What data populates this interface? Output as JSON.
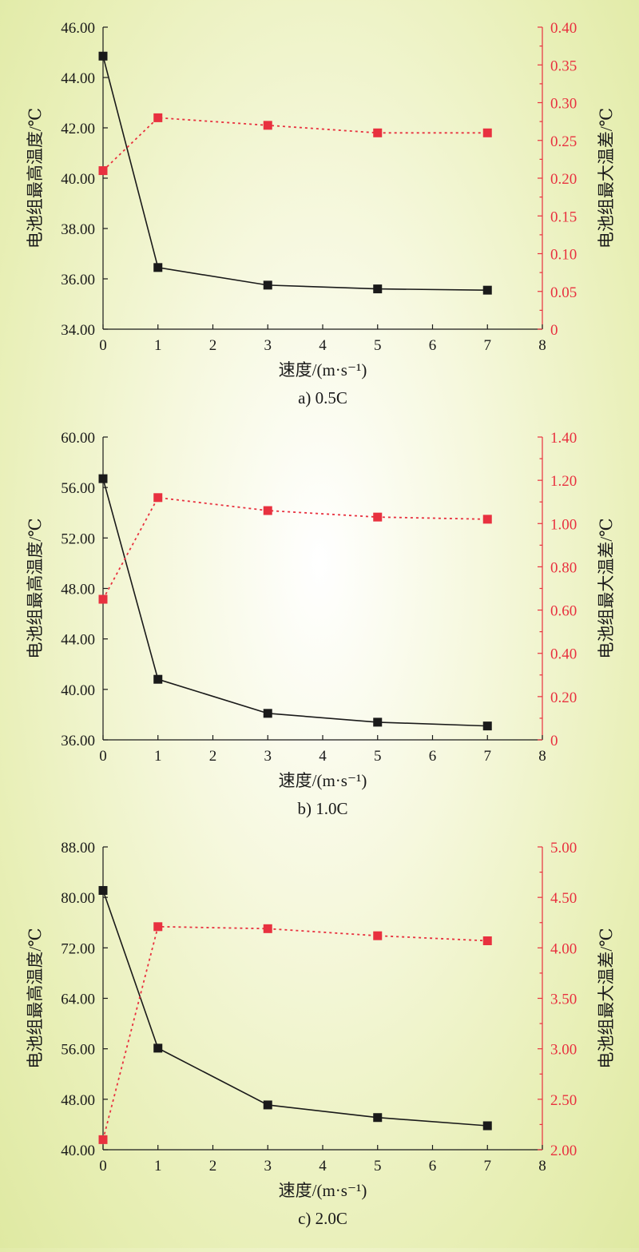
{
  "colors": {
    "left_series": "#1a1a1a",
    "right_series": "#e8313f",
    "left_axis": "#1a1a1a",
    "right_axis": "#e8313f"
  },
  "chart_data": [
    {
      "type": "line",
      "caption": "a) 0.5C",
      "xlabel": "速度/(m·s⁻¹)",
      "ylabel_left": "电池组最高温度/℃",
      "ylabel_right": "电池组最大温差/℃",
      "xlim": [
        0,
        8
      ],
      "xticks": [
        0,
        1,
        2,
        3,
        4,
        5,
        6,
        7,
        8
      ],
      "ylim_left": [
        34,
        46
      ],
      "yticks_left": [
        "34.00",
        "36.00",
        "38.00",
        "40.00",
        "42.00",
        "44.00",
        "46.00"
      ],
      "ylim_right": [
        0,
        0.4
      ],
      "yticks_right": [
        "0",
        "0.05",
        "0.10",
        "0.15",
        "0.20",
        "0.25",
        "0.30",
        "0.35",
        "0.40"
      ],
      "x": [
        0,
        1,
        3,
        5,
        7
      ],
      "series": [
        {
          "axis": "left",
          "style": "solid",
          "values": [
            44.85,
            36.45,
            35.75,
            35.6,
            35.55
          ]
        },
        {
          "axis": "right",
          "style": "dotted",
          "values": [
            0.21,
            0.28,
            0.27,
            0.26,
            0.26
          ]
        }
      ]
    },
    {
      "type": "line",
      "caption": "b) 1.0C",
      "xlabel": "速度/(m·s⁻¹)",
      "ylabel_left": "电池组最高温度/℃",
      "ylabel_right": "电池组最大温差/℃",
      "xlim": [
        0,
        8
      ],
      "xticks": [
        0,
        1,
        2,
        3,
        4,
        5,
        6,
        7,
        8
      ],
      "ylim_left": [
        36,
        60
      ],
      "yticks_left": [
        "36.00",
        "40.00",
        "44.00",
        "48.00",
        "52.00",
        "56.00",
        "60.00"
      ],
      "ylim_right": [
        0,
        1.4
      ],
      "yticks_right": [
        "0",
        "0.20",
        "0.40",
        "0.60",
        "0.80",
        "1.00",
        "1.20",
        "1.40"
      ],
      "x": [
        0,
        1,
        3,
        5,
        7
      ],
      "series": [
        {
          "axis": "left",
          "style": "solid",
          "values": [
            56.7,
            40.8,
            38.1,
            37.4,
            37.1
          ]
        },
        {
          "axis": "right",
          "style": "dotted",
          "values": [
            0.65,
            1.12,
            1.06,
            1.03,
            1.02
          ]
        }
      ]
    },
    {
      "type": "line",
      "caption": "c) 2.0C",
      "xlabel": "速度/(m·s⁻¹)",
      "ylabel_left": "电池组最高温度/℃",
      "ylabel_right": "电池组最大温差/℃",
      "xlim": [
        0,
        8
      ],
      "xticks": [
        0,
        1,
        2,
        3,
        4,
        5,
        6,
        7,
        8
      ],
      "ylim_left": [
        40,
        88
      ],
      "yticks_left": [
        "40.00",
        "48.00",
        "56.00",
        "64.00",
        "72.00",
        "80.00",
        "88.00"
      ],
      "ylim_right": [
        2,
        5
      ],
      "yticks_right": [
        "2.00",
        "2.50",
        "3.00",
        "3.50",
        "4.00",
        "4.50",
        "5.00"
      ],
      "x": [
        0,
        1,
        3,
        5,
        7
      ],
      "series": [
        {
          "axis": "left",
          "style": "solid",
          "values": [
            81.1,
            56.1,
            47.1,
            45.1,
            43.8
          ]
        },
        {
          "axis": "right",
          "style": "dotted",
          "values": [
            2.1,
            4.21,
            4.19,
            4.12,
            4.07
          ]
        }
      ]
    }
  ]
}
